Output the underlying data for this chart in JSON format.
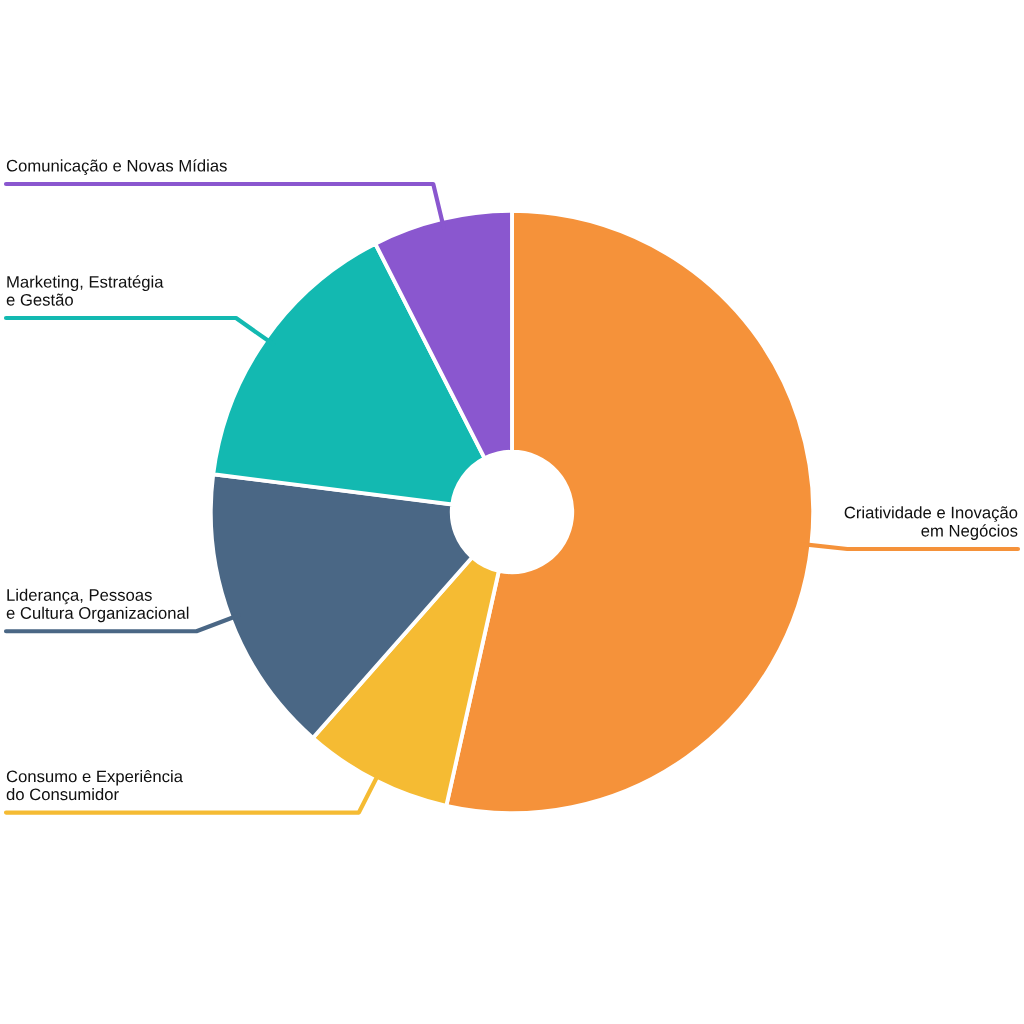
{
  "chart_data": {
    "type": "donut",
    "categories": [
      "Criatividade e Inovação\nem Negócios",
      "Consumo e Experiência\ndo Consumidor",
      "Liderança, Pessoas\ne Cultura Organizacional",
      "Marketing, Estratégia\ne Gestão",
      "Comunicação e Novas Mídias"
    ],
    "values": [
      53.5,
      8,
      15.5,
      15.5,
      7.5
    ],
    "colors": [
      "#f5923a",
      "#f5bb33",
      "#4a6785",
      "#13b9b1",
      "#8a57cf"
    ],
    "legend": false
  }
}
